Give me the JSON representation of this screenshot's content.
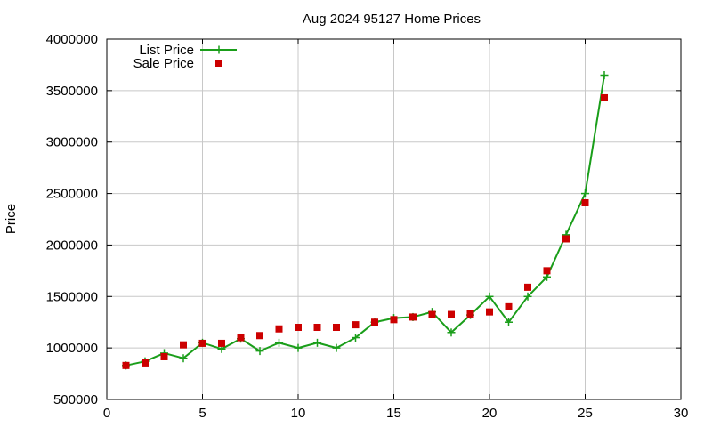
{
  "chart_data": {
    "type": "line",
    "title": "Aug 2024 95127 Home Prices",
    "xlabel": "",
    "ylabel": "Price",
    "xlim": [
      0,
      30
    ],
    "ylim": [
      500000,
      4000000
    ],
    "xticks": [
      0,
      5,
      10,
      15,
      20,
      25,
      30
    ],
    "yticks": [
      500000,
      1000000,
      1500000,
      2000000,
      2500000,
      3000000,
      3500000,
      4000000
    ],
    "grid": true,
    "legend_position": "top-left",
    "series": [
      {
        "name": "List Price",
        "style": "line-with-plus-markers",
        "color": "#1a9e1a",
        "x": [
          1,
          2,
          3,
          4,
          5,
          6,
          7,
          8,
          9,
          10,
          11,
          12,
          13,
          14,
          15,
          16,
          17,
          18,
          19,
          20,
          21,
          22,
          23,
          24,
          25,
          26
        ],
        "values": [
          830000,
          870000,
          950000,
          900000,
          1050000,
          990000,
          1090000,
          970000,
          1050000,
          1000000,
          1050000,
          1000000,
          1100000,
          1250000,
          1290000,
          1300000,
          1350000,
          1150000,
          1320000,
          1500000,
          1250000,
          1500000,
          1690000,
          2100000,
          2500000,
          3650000
        ]
      },
      {
        "name": "Sale Price",
        "style": "square-markers",
        "color": "#cc0000",
        "x": [
          1,
          2,
          3,
          4,
          5,
          6,
          7,
          8,
          9,
          10,
          11,
          12,
          13,
          14,
          15,
          16,
          17,
          18,
          19,
          20,
          21,
          22,
          23,
          24,
          25,
          26
        ],
        "values": [
          830000,
          855000,
          915000,
          1030000,
          1045000,
          1045000,
          1100000,
          1120000,
          1185000,
          1200000,
          1200000,
          1200000,
          1225000,
          1250000,
          1275000,
          1300000,
          1325000,
          1325000,
          1330000,
          1350000,
          1400000,
          1590000,
          1750000,
          2060000,
          2410000,
          3430000
        ]
      }
    ]
  }
}
